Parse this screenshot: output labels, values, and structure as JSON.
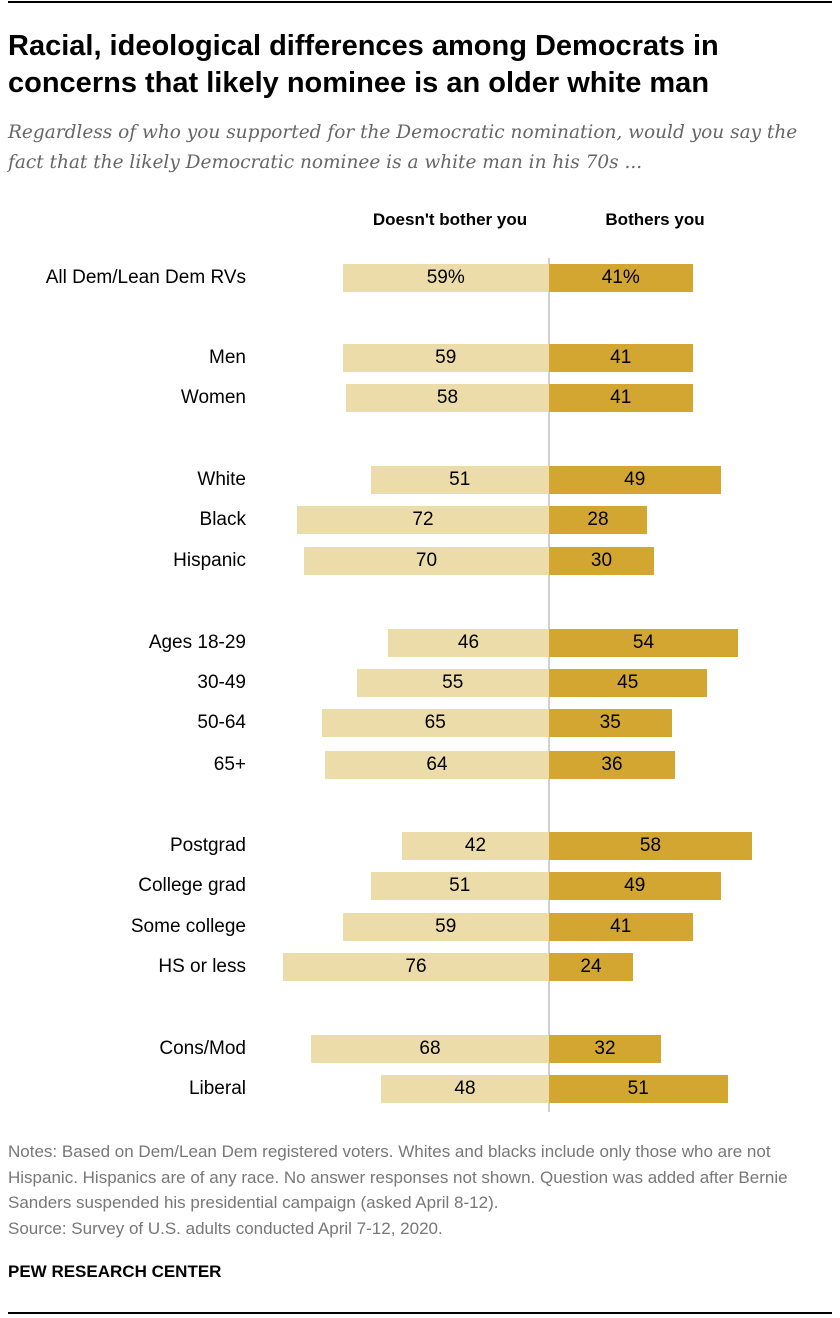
{
  "title": "Racial, ideological differences among Democrats in concerns that likely nominee is an older white man",
  "subtitle": "Regardless of who you supported for the Democratic nomination, would you say the fact that the likely Democratic nominee is a white man in his 70s ...",
  "notes": "Notes: Based on Dem/Lean Dem registered voters. Whites and blacks include only those who are not Hispanic. Hispanics are of any race. No answer responses not shown. Question was added after Bernie Sanders suspended his presidential campaign (asked April 8-12).",
  "source": "Source: Survey of U.S. adults conducted April 7-12, 2020.",
  "brand": "PEW RESEARCH CENTER",
  "chart_data": {
    "type": "bar",
    "orientation": "horizontal-diverging",
    "colors": {
      "doesnt_bother": "#ecdcaa",
      "bothers": "#d2a630"
    },
    "series": [
      {
        "name": "Doesn't bother you",
        "values": [
          59,
          59,
          58,
          51,
          72,
          70,
          46,
          55,
          65,
          64,
          42,
          51,
          59,
          76,
          68,
          48
        ],
        "labels": [
          "59%",
          "59",
          "58",
          "51",
          "72",
          "70",
          "46",
          "55",
          "65",
          "64",
          "42",
          "51",
          "59",
          "76",
          "68",
          "48"
        ]
      },
      {
        "name": "Bothers you",
        "values": [
          41,
          41,
          41,
          49,
          28,
          30,
          54,
          45,
          35,
          36,
          58,
          49,
          41,
          24,
          32,
          51
        ],
        "labels": [
          "41%",
          "41",
          "41",
          "49",
          "28",
          "30",
          "54",
          "45",
          "35",
          "36",
          "58",
          "49",
          "41",
          "24",
          "32",
          "51"
        ]
      }
    ],
    "categories": [
      "All Dem/Lean Dem RVs",
      "Men",
      "Women",
      "White",
      "Black",
      "Hispanic",
      "Ages 18-29",
      "30-49",
      "50-64",
      "65+",
      "Postgrad",
      "College grad",
      "Some college",
      "HS or less",
      "Cons/Mod",
      "Liberal"
    ],
    "xlim": [
      0,
      100
    ]
  }
}
